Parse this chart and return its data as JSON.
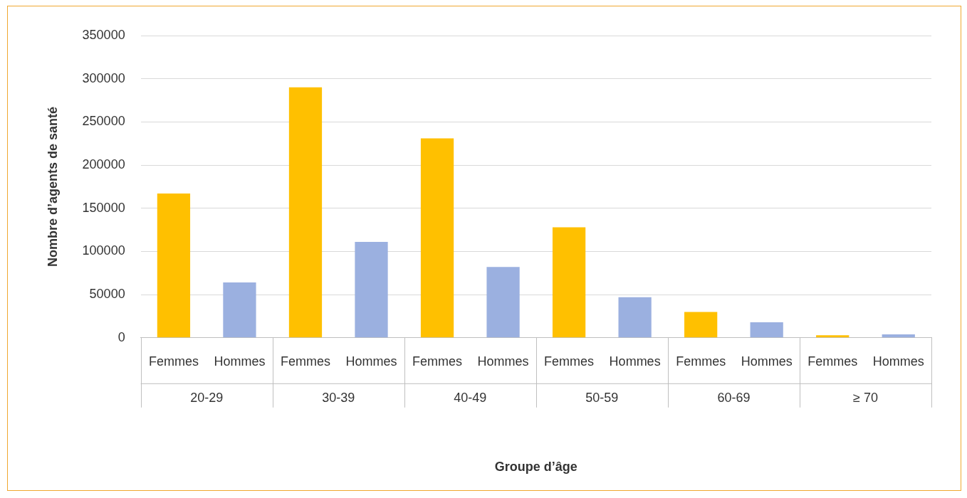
{
  "chart_data": {
    "type": "bar",
    "xlabel": "Groupe d’âge",
    "ylabel": "Nombre d’agents de santé",
    "categories": [
      "20-29",
      "30-39",
      "40-49",
      "50-59",
      "60-69",
      "≥ 70"
    ],
    "series": [
      {
        "name": "Femmes",
        "color": "#ffc000",
        "values": [
          167000,
          290000,
          231000,
          128000,
          30000,
          3000
        ]
      },
      {
        "name": "Hommes",
        "color": "#9bb0e0",
        "values": [
          64000,
          111000,
          82000,
          47000,
          18000,
          4000
        ]
      }
    ],
    "ylim": [
      0,
      350000
    ],
    "yticks": [
      0,
      50000,
      100000,
      150000,
      200000,
      250000,
      300000,
      350000
    ],
    "grid": "y",
    "legend": false
  }
}
